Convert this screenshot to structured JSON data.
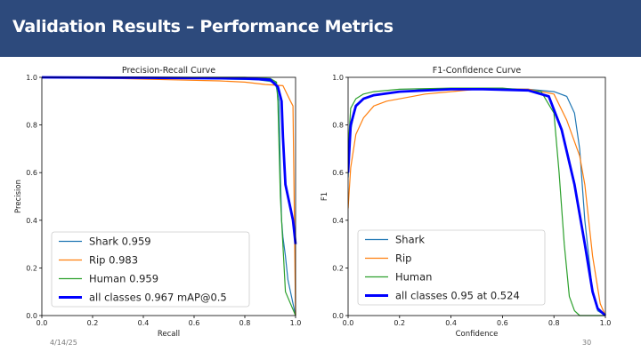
{
  "slide": {
    "title": "Validation Results – Performance Metrics",
    "date": "4/14/25",
    "page_number": "30"
  },
  "colors": {
    "title_bar": "#2d4a7c",
    "shark": "#1f77b4",
    "rip": "#ff7f0e",
    "human": "#2ca02c",
    "all_classes": "#0000ff"
  },
  "chart_data": [
    {
      "type": "line",
      "title": "Precision-Recall Curve",
      "xlabel": "Recall",
      "ylabel": "Precision",
      "xlim": [
        0,
        1
      ],
      "ylim": [
        0,
        1
      ],
      "xticks": [
        "0.0",
        "0.2",
        "0.4",
        "0.6",
        "0.8",
        "1.0"
      ],
      "yticks": [
        "0.0",
        "0.2",
        "0.4",
        "0.6",
        "0.8",
        "1.0"
      ],
      "grid": false,
      "legend_position": "lower-left",
      "series": [
        {
          "name": "Shark 0.959",
          "color": "#1f77b4",
          "width": 1.2,
          "x": [
            0,
            0.3,
            0.6,
            0.85,
            0.92,
            0.935,
            0.94,
            0.945,
            0.95,
            0.96,
            0.97,
            1.0
          ],
          "y": [
            1.0,
            1.0,
            0.995,
            0.99,
            0.98,
            0.9,
            0.6,
            0.4,
            0.33,
            0.25,
            0.15,
            0.0
          ]
        },
        {
          "name": "Rip 0.983",
          "color": "#ff7f0e",
          "width": 1.2,
          "x": [
            0,
            0.3,
            0.5,
            0.7,
            0.8,
            0.88,
            0.95,
            0.98,
            0.99,
            1.0
          ],
          "y": [
            1.0,
            0.995,
            0.99,
            0.985,
            0.98,
            0.97,
            0.965,
            0.9,
            0.88,
            0.0
          ]
        },
        {
          "name": "Human 0.959",
          "color": "#2ca02c",
          "width": 1.2,
          "x": [
            0,
            0.4,
            0.8,
            0.9,
            0.925,
            0.93,
            0.935,
            0.94,
            0.945,
            0.96,
            1.0
          ],
          "y": [
            1.0,
            1.0,
            1.0,
            0.995,
            0.98,
            0.9,
            0.7,
            0.5,
            0.4,
            0.1,
            0.0
          ]
        },
        {
          "name": "all classes 0.967 mAP@0.5",
          "color": "#0000ff",
          "width": 2.8,
          "x": [
            0,
            0.4,
            0.8,
            0.9,
            0.93,
            0.945,
            0.95,
            0.96,
            0.98,
            0.99,
            1.0
          ],
          "y": [
            1.0,
            0.998,
            0.995,
            0.99,
            0.96,
            0.9,
            0.75,
            0.55,
            0.45,
            0.4,
            0.3
          ]
        }
      ]
    },
    {
      "type": "line",
      "title": "F1-Confidence Curve",
      "xlabel": "Confidence",
      "ylabel": "F1",
      "xlim": [
        0,
        1
      ],
      "ylim": [
        0,
        1
      ],
      "xticks": [
        "0.0",
        "0.2",
        "0.4",
        "0.6",
        "0.8",
        "1.0"
      ],
      "yticks": [
        "0.0",
        "0.2",
        "0.4",
        "0.6",
        "0.8",
        "1.0"
      ],
      "grid": false,
      "legend_position": "lower-left",
      "series": [
        {
          "name": "Shark",
          "color": "#1f77b4",
          "width": 1.2,
          "x": [
            0,
            0.01,
            0.03,
            0.06,
            0.12,
            0.3,
            0.5,
            0.7,
            0.8,
            0.85,
            0.88,
            0.9,
            0.92,
            0.95,
            0.97,
            1.0
          ],
          "y": [
            0.58,
            0.78,
            0.88,
            0.91,
            0.93,
            0.95,
            0.955,
            0.95,
            0.94,
            0.92,
            0.85,
            0.7,
            0.4,
            0.1,
            0.02,
            0.0
          ]
        },
        {
          "name": "Rip",
          "color": "#ff7f0e",
          "width": 1.2,
          "x": [
            0,
            0.01,
            0.03,
            0.06,
            0.1,
            0.15,
            0.3,
            0.5,
            0.7,
            0.8,
            0.85,
            0.9,
            0.92,
            0.95,
            0.98,
            1.0
          ],
          "y": [
            0.45,
            0.62,
            0.76,
            0.83,
            0.88,
            0.9,
            0.93,
            0.95,
            0.95,
            0.93,
            0.82,
            0.67,
            0.55,
            0.25,
            0.05,
            0.0
          ]
        },
        {
          "name": "Human",
          "color": "#2ca02c",
          "width": 1.2,
          "x": [
            0,
            0.01,
            0.03,
            0.06,
            0.1,
            0.2,
            0.4,
            0.6,
            0.75,
            0.8,
            0.82,
            0.84,
            0.86,
            0.88,
            0.9,
            1.0
          ],
          "y": [
            0.7,
            0.87,
            0.91,
            0.93,
            0.94,
            0.95,
            0.955,
            0.955,
            0.94,
            0.85,
            0.6,
            0.3,
            0.08,
            0.02,
            0.0,
            0.0
          ]
        },
        {
          "name": "all classes 0.95 at 0.524",
          "color": "#0000ff",
          "width": 2.8,
          "x": [
            0,
            0.01,
            0.03,
            0.06,
            0.1,
            0.2,
            0.4,
            0.524,
            0.7,
            0.78,
            0.83,
            0.88,
            0.92,
            0.95,
            0.97,
            1.0
          ],
          "y": [
            0.6,
            0.8,
            0.88,
            0.91,
            0.925,
            0.94,
            0.95,
            0.95,
            0.945,
            0.92,
            0.78,
            0.55,
            0.3,
            0.1,
            0.03,
            0.0
          ]
        }
      ]
    }
  ]
}
